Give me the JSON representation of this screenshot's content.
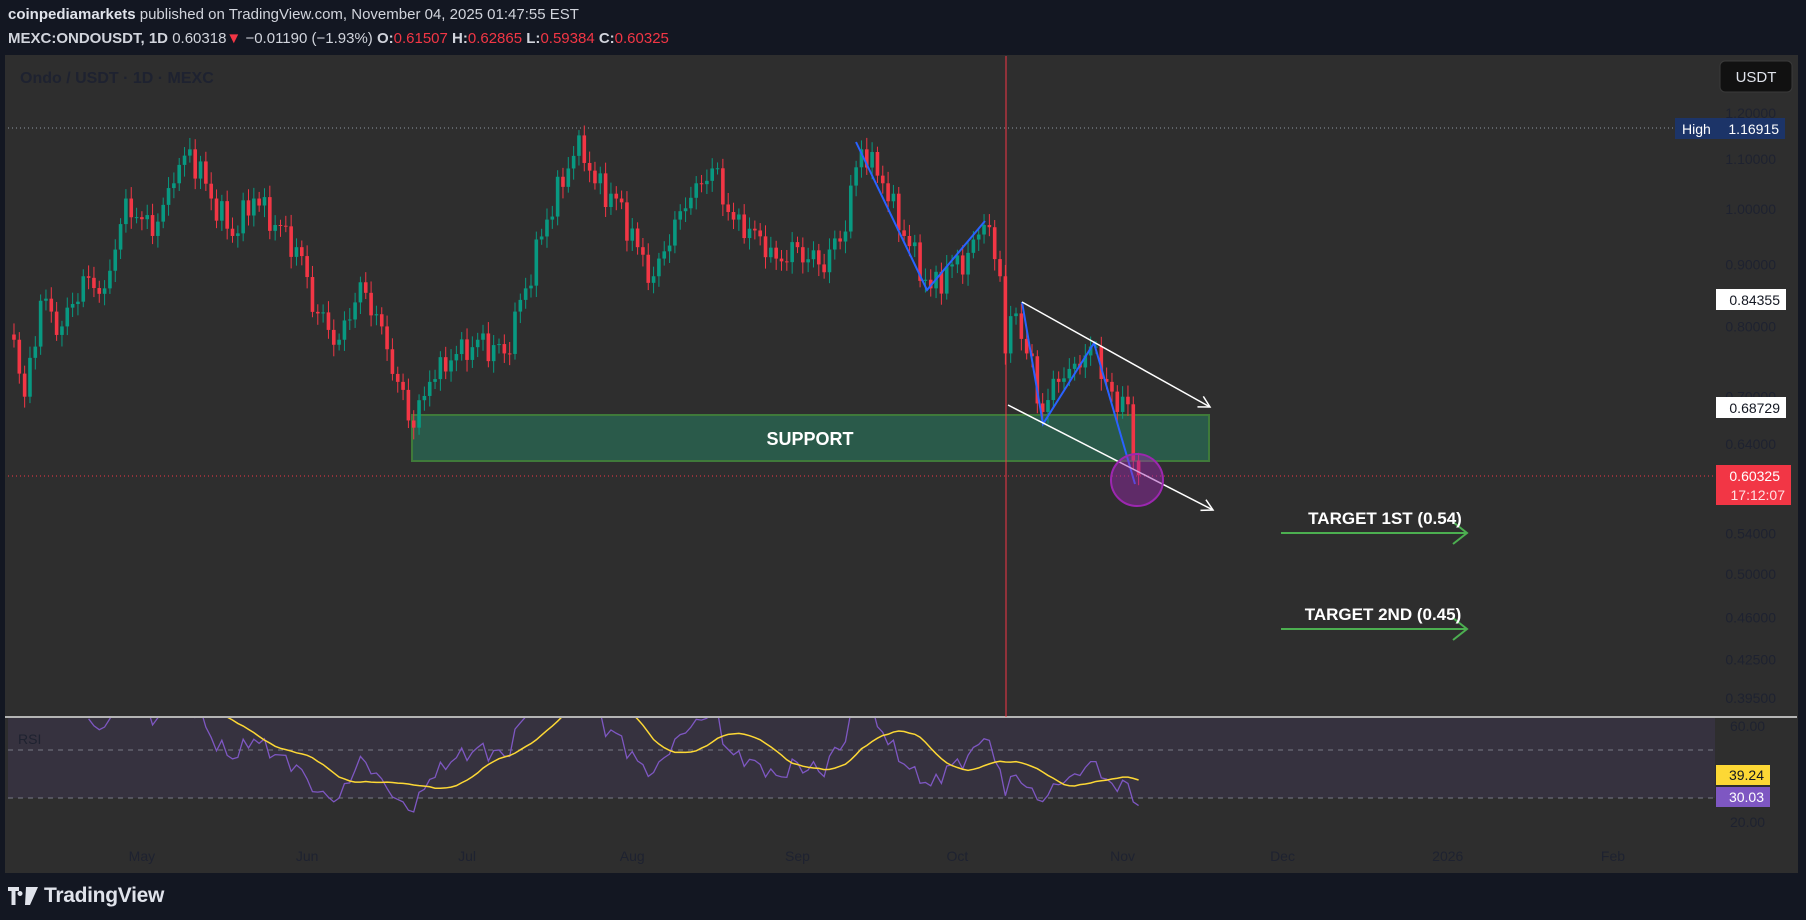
{
  "header": {
    "author": "coinpediamarkets",
    "published": " published on TradingView.com, November 04, 2025 01:47:55 EST",
    "symbol": "MEXC:ONDOUSDT, 1D",
    "last": "0.60318",
    "change": "−0.01190 (−1.93%)",
    "o_label": "O:",
    "o": "0.61507",
    "h_label": "H:",
    "h": "0.62865",
    "l_label": "L:",
    "l": "0.59384",
    "c_label": "C:",
    "c": "0.60325",
    "down_icon": "triangle-down-icon"
  },
  "chart": {
    "legend": "Ondo / USDT · 1D · MEXC",
    "currency_button": "USDT",
    "high_label": "High",
    "high_value": "1.16915",
    "label_upper": "0.84355",
    "label_lower": "0.68729",
    "last_price": "0.60325",
    "countdown": "17:12:07",
    "support_label": "SUPPORT",
    "target1": "TARGET 1ST (0.54)",
    "target2": "TARGET 2ND (0.45)",
    "rsi_label": "RSI",
    "rsi_ma_value": "39.24",
    "rsi_value": "30.03",
    "colors": {
      "up": "#089981",
      "down": "#f23645",
      "rsi": "#7e57c2",
      "rsi_ma": "#fdd835",
      "support": "#2a5a4a",
      "drawing_blue": "#2962ff",
      "target": "#4caf50",
      "high_tag": "#1c3468"
    }
  },
  "chart_data": {
    "type": "candlestick",
    "scale": "log",
    "price_ticks": [
      "1.20000",
      "1.10000",
      "1.00000",
      "0.90000",
      "0.80000",
      "0.70000",
      "0.64000",
      "0.54000",
      "0.50000",
      "0.46000",
      "0.42500",
      "0.39500"
    ],
    "rsi_ticks": [
      "60.00",
      "20.00"
    ],
    "rsi_bands": [
      50,
      30
    ],
    "x_ticks": [
      {
        "label": "May",
        "date": "2025-05-01"
      },
      {
        "label": "Jun",
        "date": "2025-06-01"
      },
      {
        "label": "Jul",
        "date": "2025-07-01"
      },
      {
        "label": "Aug",
        "date": "2025-08-01"
      },
      {
        "label": "Sep",
        "date": "2025-09-01"
      },
      {
        "label": "Oct",
        "date": "2025-10-01"
      },
      {
        "label": "Nov",
        "date": "2025-11-01"
      },
      {
        "label": "Dec",
        "date": "2025-12-01"
      },
      {
        "label": "2026",
        "date": "2026-01-01"
      },
      {
        "label": "Feb",
        "date": "2026-02-01"
      }
    ],
    "close_path": [
      [
        "2025-04-07",
        0.78
      ],
      [
        "2025-04-09",
        0.7
      ],
      [
        "2025-04-12",
        0.84
      ],
      [
        "2025-04-16",
        0.8
      ],
      [
        "2025-04-20",
        0.88
      ],
      [
        "2025-04-24",
        0.86
      ],
      [
        "2025-04-28",
        1.02
      ],
      [
        "2025-05-03",
        0.95
      ],
      [
        "2025-05-07",
        1.05
      ],
      [
        "2025-05-10",
        1.12
      ],
      [
        "2025-05-14",
        1.02
      ],
      [
        "2025-05-18",
        0.95
      ],
      [
        "2025-05-22",
        1.02
      ],
      [
        "2025-05-26",
        0.97
      ],
      [
        "2025-05-30",
        0.93
      ],
      [
        "2025-06-03",
        0.82
      ],
      [
        "2025-06-07",
        0.78
      ],
      [
        "2025-06-11",
        0.87
      ],
      [
        "2025-06-15",
        0.8
      ],
      [
        "2025-06-18",
        0.72
      ],
      [
        "2025-06-21",
        0.66
      ],
      [
        "2025-06-24",
        0.72
      ],
      [
        "2025-06-28",
        0.75
      ],
      [
        "2025-07-03",
        0.78
      ],
      [
        "2025-07-08",
        0.76
      ],
      [
        "2025-07-12",
        0.86
      ],
      [
        "2025-07-16",
        0.98
      ],
      [
        "2025-07-20",
        1.08
      ],
      [
        "2025-07-22",
        1.15
      ],
      [
        "2025-07-25",
        1.05
      ],
      [
        "2025-07-29",
        1.02
      ],
      [
        "2025-08-02",
        0.93
      ],
      [
        "2025-08-05",
        0.88
      ],
      [
        "2025-08-09",
        0.98
      ],
      [
        "2025-08-13",
        1.05
      ],
      [
        "2025-08-16",
        1.08
      ],
      [
        "2025-08-20",
        0.98
      ],
      [
        "2025-08-24",
        0.96
      ],
      [
        "2025-08-28",
        0.91
      ],
      [
        "2025-09-01",
        0.93
      ],
      [
        "2025-09-05",
        0.9
      ],
      [
        "2025-09-09",
        0.94
      ],
      [
        "2025-09-13",
        1.12
      ],
      [
        "2025-09-17",
        1.05
      ],
      [
        "2025-09-21",
        0.95
      ],
      [
        "2025-09-26",
        0.86
      ],
      [
        "2025-09-30",
        0.9
      ],
      [
        "2025-10-03",
        0.92
      ],
      [
        "2025-10-06",
        0.97
      ],
      [
        "2025-10-09",
        0.88
      ],
      [
        "2025-10-10",
        0.76
      ],
      [
        "2025-10-12",
        0.82
      ],
      [
        "2025-10-14",
        0.76
      ],
      [
        "2025-10-17",
        0.68
      ],
      [
        "2025-10-20",
        0.72
      ],
      [
        "2025-10-24",
        0.74
      ],
      [
        "2025-10-27",
        0.77
      ],
      [
        "2025-10-29",
        0.72
      ],
      [
        "2025-10-31",
        0.68
      ],
      [
        "2025-11-01",
        0.7
      ],
      [
        "2025-11-02",
        0.69
      ],
      [
        "2025-11-03",
        0.62
      ],
      [
        "2025-11-04",
        0.603
      ]
    ]
  }
}
